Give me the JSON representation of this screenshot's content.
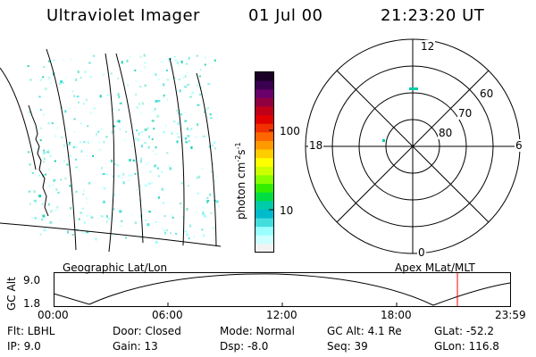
{
  "header": {
    "title": "Ultraviolet Imager",
    "date": "01 Jul 00",
    "time": "21:23:20 UT"
  },
  "colorbar": {
    "label_base": "photon cm",
    "label_exp1": "-2",
    "label_mid": "s",
    "label_exp2": "-1",
    "ticks": [
      "100",
      "10"
    ],
    "colors_top_to_bottom": [
      "#1a0026",
      "#3a0050",
      "#6a006a",
      "#900040",
      "#c00018",
      "#e00000",
      "#f03000",
      "#ff6600",
      "#ff9900",
      "#ffcc00",
      "#ffff00",
      "#ccff00",
      "#88ff00",
      "#33ee00",
      "#00dd44",
      "#00ccaa",
      "#00bbcc",
      "#44dddd",
      "#99ffff",
      "#ccffff",
      "#f2f2f2"
    ]
  },
  "polar_plot": {
    "labels": [
      "12",
      "60",
      "70",
      "80",
      "18",
      "6",
      "0"
    ]
  },
  "map_labels": {
    "left": "Geographic Lat/Lon",
    "right": "Apex MLat/MLT"
  },
  "altitude_plot": {
    "axis_title": "GC Alt",
    "y_ticks": [
      "9.0",
      "1.8"
    ],
    "x_ticks": [
      "00:00",
      "06:00",
      "12:00",
      "18:00",
      "23:59"
    ],
    "current_time_marker_color": "#ff0000"
  },
  "info": {
    "flt": "Flt: LBHL",
    "door": "Door: Closed",
    "mode": "Mode: Normal",
    "gc_alt": "GC Alt: 4.1 Re",
    "glat": "GLat: -52.2",
    "ip": "IP:  9.0",
    "gain": "Gain: 13",
    "dsp": "Dsp:    -8.0",
    "seq": "Seq: 39",
    "glon": "GLon: 116.8"
  }
}
